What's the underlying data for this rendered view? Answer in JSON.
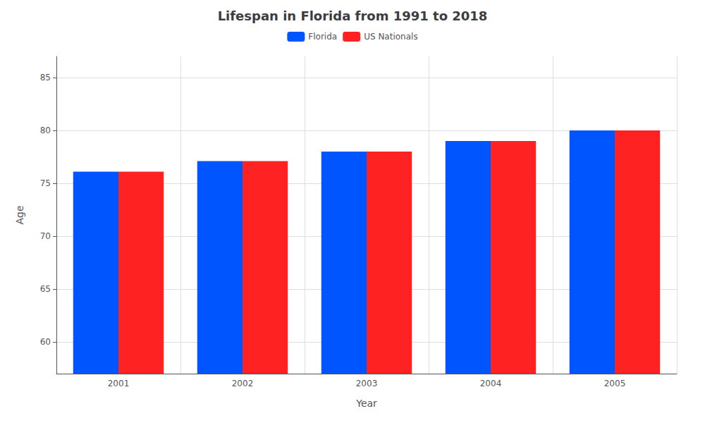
{
  "chart_data": {
    "type": "bar",
    "title": "Lifespan in Florida from 1991 to 2018",
    "x_label": "Year",
    "y_label": "Age",
    "categories": [
      "2001",
      "2002",
      "2003",
      "2004",
      "2005"
    ],
    "series": [
      {
        "name": "Florida",
        "color": "#0055ff",
        "values": [
          76.1,
          77.1,
          78.0,
          79.0,
          80.0
        ]
      },
      {
        "name": "US Nationals",
        "color": "#ff2222",
        "values": [
          76.1,
          77.1,
          78.0,
          79.0,
          80.0
        ]
      }
    ],
    "ylim": [
      57,
      87
    ],
    "yticks": [
      60,
      65,
      70,
      75,
      80,
      85
    ],
    "grid": true,
    "legend": "top"
  }
}
